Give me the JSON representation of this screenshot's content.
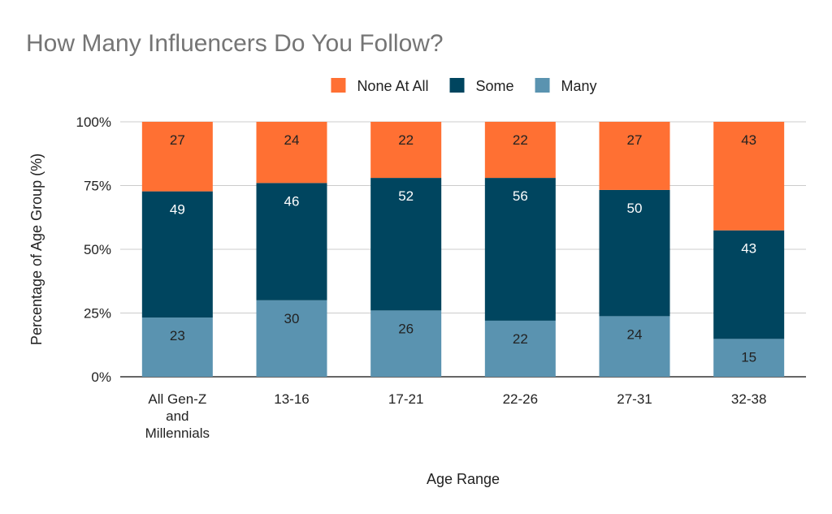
{
  "chart_data": {
    "type": "bar",
    "stacked": true,
    "percent_stacked": true,
    "title": "How Many Influencers Do You Follow?",
    "xlabel": "Age Range",
    "ylabel": "Percentage of Age Group (%)",
    "categories": [
      [
        "All Gen-Z",
        "and",
        "Millennials"
      ],
      [
        "13-16"
      ],
      [
        "17-21"
      ],
      [
        "22-26"
      ],
      [
        "27-31"
      ],
      [
        "32-38"
      ]
    ],
    "series": [
      {
        "name": "Many",
        "color": "#5a93b0",
        "label_color": "#222222",
        "values": [
          23,
          30,
          26,
          22,
          24,
          15
        ]
      },
      {
        "name": "Some",
        "color": "#00455f",
        "label_color": "#ffffff",
        "values": [
          49,
          46,
          52,
          56,
          50,
          43
        ]
      },
      {
        "name": "None At All",
        "color": "#ff7033",
        "label_color": "#222222",
        "values": [
          27,
          24,
          22,
          22,
          27,
          43
        ]
      }
    ],
    "legend_order": [
      "None At All",
      "Some",
      "Many"
    ],
    "legend_position": "top",
    "ylim": [
      0,
      100
    ],
    "yticks": [
      "0%",
      "25%",
      "50%",
      "75%",
      "100%"
    ],
    "grid": true
  }
}
